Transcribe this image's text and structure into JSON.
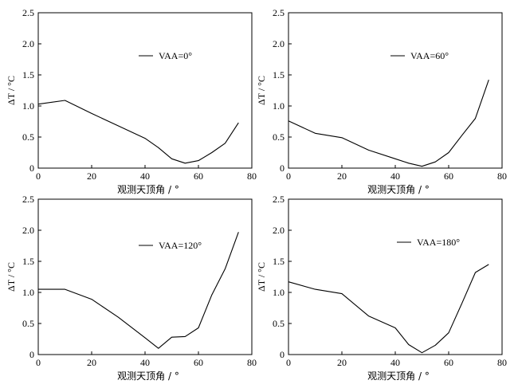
{
  "chart_data": [
    {
      "type": "line",
      "xlabel": "观测天顶角 / °",
      "ylabel": "ΔT / °C",
      "xlim": [
        0,
        80
      ],
      "ylim": [
        0,
        2.5
      ],
      "xticks": [
        0,
        20,
        40,
        60,
        80
      ],
      "yticks": [
        0,
        0.5,
        1.0,
        1.5,
        2.0,
        2.5
      ],
      "ytick_labels": [
        "0",
        "0.5",
        "1.0",
        "1.5",
        "2.0",
        "2.5"
      ],
      "legend_placement": "upper-center",
      "series": [
        {
          "name": "VAA=0°",
          "x": [
            0,
            10,
            20,
            30,
            40,
            45,
            50,
            55,
            60,
            65,
            70,
            75
          ],
          "y": [
            1.03,
            1.09,
            0.88,
            0.68,
            0.48,
            0.33,
            0.15,
            0.08,
            0.12,
            0.25,
            0.4,
            0.73
          ]
        }
      ]
    },
    {
      "type": "line",
      "xlabel": "观测天顶角 / °",
      "ylabel": "ΔT / °C",
      "xlim": [
        0,
        80
      ],
      "ylim": [
        0,
        2.5
      ],
      "xticks": [
        0,
        20,
        40,
        60,
        80
      ],
      "yticks": [
        0,
        0.5,
        1.0,
        1.5,
        2.0,
        2.5
      ],
      "ytick_labels": [
        "0",
        "0.5",
        "1.0",
        "1.5",
        "2.0",
        "2.5"
      ],
      "legend_placement": "upper-center",
      "series": [
        {
          "name": "VAA=60°",
          "x": [
            0,
            10,
            20,
            30,
            40,
            45,
            50,
            55,
            60,
            65,
            70,
            75
          ],
          "y": [
            0.76,
            0.56,
            0.49,
            0.29,
            0.15,
            0.08,
            0.03,
            0.1,
            0.25,
            0.53,
            0.8,
            1.42
          ]
        }
      ]
    },
    {
      "type": "line",
      "xlabel": "观测天顶角 / °",
      "ylabel": "ΔT / °C",
      "xlim": [
        0,
        80
      ],
      "ylim": [
        0,
        2.5
      ],
      "xticks": [
        0,
        20,
        40,
        60,
        80
      ],
      "yticks": [
        0,
        0.5,
        1.0,
        1.5,
        2.0,
        2.5
      ],
      "ytick_labels": [
        "0",
        "0.5",
        "1.0",
        "1.5",
        "2.0",
        "2.5"
      ],
      "legend_placement": "upper-center",
      "series": [
        {
          "name": "VAA=120°",
          "x": [
            0,
            10,
            20,
            30,
            40,
            45,
            50,
            55,
            60,
            65,
            70,
            75
          ],
          "y": [
            1.05,
            1.05,
            0.89,
            0.6,
            0.27,
            0.1,
            0.28,
            0.29,
            0.43,
            0.96,
            1.38,
            1.97
          ]
        }
      ]
    },
    {
      "type": "line",
      "xlabel": "观测天顶角 / °",
      "ylabel": "ΔT / °C",
      "xlim": [
        0,
        80
      ],
      "ylim": [
        0,
        2.5
      ],
      "xticks": [
        0,
        20,
        40,
        60,
        80
      ],
      "yticks": [
        0,
        0.5,
        1.0,
        1.5,
        2.0,
        2.5
      ],
      "ytick_labels": [
        "0",
        "0.5",
        "1.0",
        "1.5",
        "2.0",
        "2.5"
      ],
      "legend_placement": "upper-center",
      "series": [
        {
          "name": "VAA=180°",
          "x": [
            0,
            10,
            20,
            30,
            40,
            45,
            50,
            55,
            60,
            65,
            70,
            75
          ],
          "y": [
            1.17,
            1.05,
            0.98,
            0.62,
            0.43,
            0.16,
            0.03,
            0.15,
            0.35,
            0.83,
            1.32,
            1.45
          ]
        }
      ]
    }
  ]
}
